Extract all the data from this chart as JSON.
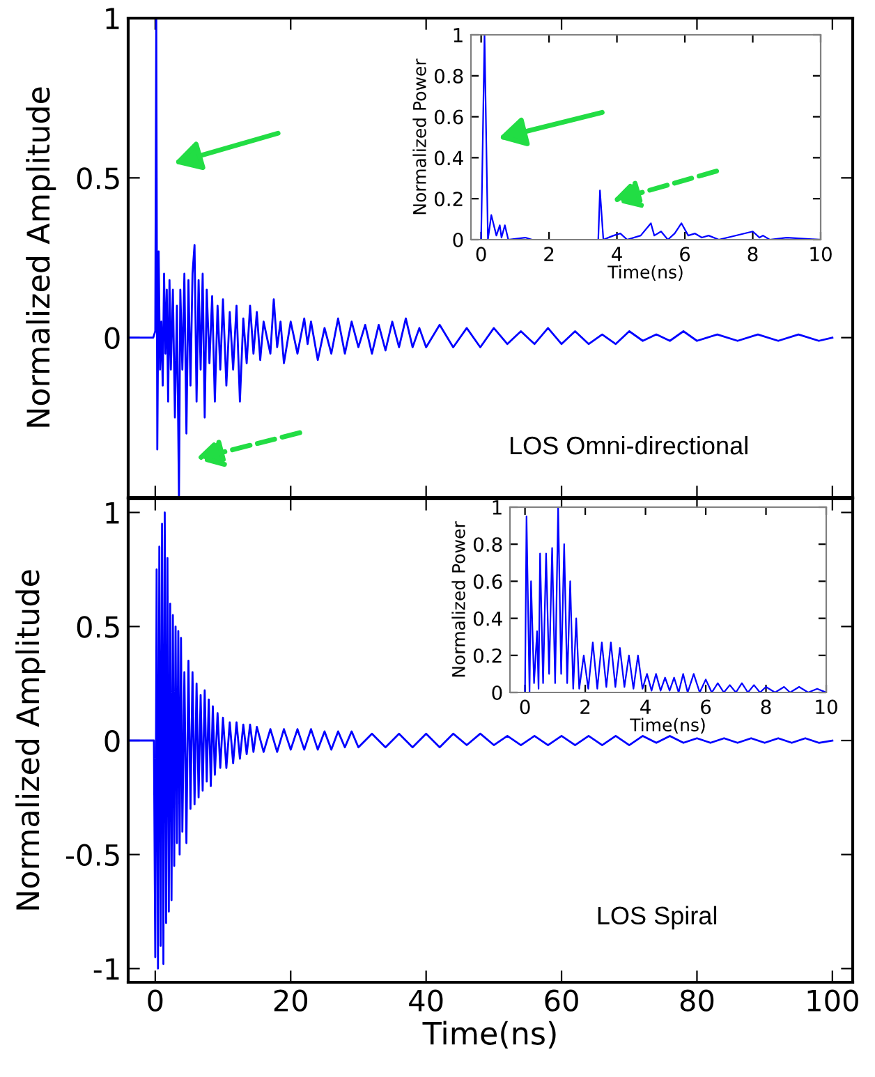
{
  "chart_data": [
    {
      "type": "line",
      "ylabel": "Normalized Amplitude",
      "xlim": [
        -4,
        103
      ],
      "xticks": [
        0,
        20,
        40,
        60,
        80,
        100
      ],
      "ylim": [
        -0.5,
        1
      ],
      "yticks": [
        0,
        0.5,
        1
      ],
      "tick_labels": "y",
      "grid": false,
      "legend": false,
      "annotations": [
        "LOS Omni-directional"
      ],
      "series": [
        {
          "color": "#0000ff",
          "x": [
            -4,
            -0.3,
            0,
            0.15,
            0.3,
            0.5,
            0.7,
            0.9,
            1.1,
            1.3,
            1.5,
            1.7,
            1.9,
            2.1,
            2.3,
            2.6,
            2.9,
            3.2,
            3.5,
            3.7,
            4.0,
            4.3,
            4.6,
            4.9,
            5.2,
            5.5,
            5.8,
            6.1,
            6.4,
            6.7,
            7.0,
            7.3,
            7.6,
            8.0,
            8.4,
            8.8,
            9.2,
            9.6,
            10,
            10.5,
            11,
            11.5,
            12,
            12.5,
            13,
            13.5,
            14,
            14.5,
            15,
            15.5,
            16,
            17,
            17.5,
            18,
            18.5,
            19,
            20,
            21,
            22,
            22.5,
            23,
            24,
            25,
            26,
            27,
            28,
            29,
            30,
            31,
            32,
            33,
            34,
            35,
            36,
            37,
            38,
            39,
            40,
            42,
            44,
            46,
            48,
            50,
            52,
            54,
            56,
            58,
            60,
            62,
            64,
            66,
            68,
            70,
            72,
            74,
            76,
            78,
            80,
            83,
            86,
            89,
            92,
            95,
            98,
            100
          ],
          "values": [
            0,
            0,
            0.02,
            1,
            -0.35,
            0.27,
            -0.1,
            0.05,
            -0.15,
            0.2,
            -0.05,
            0.15,
            -0.2,
            0.18,
            -0.1,
            0.15,
            -0.25,
            0.1,
            -0.5,
            0.15,
            -0.1,
            0.2,
            -0.3,
            0.18,
            -0.15,
            0.2,
            0.29,
            -0.2,
            0.18,
            -0.1,
            0.2,
            -0.25,
            0.15,
            -0.08,
            0.13,
            -0.2,
            0.1,
            -0.1,
            0.12,
            -0.15,
            0.08,
            -0.1,
            0.1,
            -0.2,
            0.06,
            -0.08,
            0.1,
            -0.05,
            0.08,
            -0.07,
            0.05,
            -0.05,
            0.12,
            -0.03,
            0.05,
            -0.08,
            0.05,
            -0.05,
            0.06,
            -0.02,
            0.05,
            -0.07,
            0.03,
            -0.05,
            0.06,
            -0.05,
            0.05,
            -0.03,
            0.04,
            -0.05,
            0.04,
            -0.04,
            0.05,
            -0.03,
            0.06,
            -0.03,
            0.03,
            -0.03,
            0.04,
            -0.03,
            0.03,
            -0.03,
            0.03,
            -0.02,
            0.02,
            -0.02,
            0.03,
            -0.02,
            0.02,
            -0.02,
            0.01,
            -0.02,
            0.02,
            -0.01,
            0.01,
            -0.01,
            0.02,
            -0.01,
            0.01,
            -0.01,
            0.01,
            -0.01,
            0.01,
            -0.01,
            0
          ]
        }
      ]
    },
    {
      "type": "line",
      "xlabel": "Time(ns)",
      "ylabel": "Normalized Power",
      "xlim": [
        -0.3,
        10
      ],
      "xticks": [
        0,
        2,
        4,
        6,
        8,
        10
      ],
      "ylim": [
        0,
        1
      ],
      "yticks": [
        0,
        0.2,
        0.4,
        0.6,
        0.8,
        1
      ],
      "grid": false,
      "legend": false,
      "series": [
        {
          "color": "#0000ff",
          "x": [
            -0.3,
            0,
            0.1,
            0.2,
            0.3,
            0.45,
            0.55,
            0.6,
            0.7,
            0.8,
            1.3,
            1.5,
            3.45,
            3.5,
            3.6,
            3.9,
            4.1,
            4.3,
            4.7,
            5.0,
            5.1,
            5.3,
            5.5,
            5.7,
            5.9,
            6.1,
            6.3,
            6.5,
            6.7,
            7.0,
            8.0,
            8.2,
            8.3,
            8.5,
            9,
            10
          ],
          "values": [
            0,
            0,
            1,
            0,
            0.12,
            0.02,
            0.07,
            0.01,
            0.07,
            0,
            0.01,
            0,
            0,
            0.24,
            0,
            0.02,
            0.03,
            0,
            0.02,
            0.08,
            0.02,
            0.04,
            0,
            0.03,
            0.08,
            0.02,
            0.03,
            0.01,
            0.02,
            0,
            0.04,
            0.01,
            0.02,
            0,
            0.01,
            0
          ]
        }
      ]
    },
    {
      "type": "line",
      "xlabel": "Time(ns)",
      "ylabel": "Normalized Amplitude",
      "xlim": [
        -4,
        103
      ],
      "xticks": [
        0,
        20,
        40,
        60,
        80,
        100
      ],
      "ylim": [
        -1.06,
        1.06
      ],
      "yticks": [
        -1,
        -0.5,
        0,
        0.5,
        1
      ],
      "grid": false,
      "legend": false,
      "annotations": [
        "LOS Spiral"
      ],
      "series": [
        {
          "color": "#0000ff",
          "x": [
            -4,
            -0.2,
            0,
            0.2,
            0.4,
            0.6,
            0.8,
            1.0,
            1.2,
            1.4,
            1.6,
            1.8,
            2.0,
            2.2,
            2.4,
            2.6,
            2.8,
            3.0,
            3.2,
            3.4,
            3.6,
            3.8,
            4.0,
            4.3,
            4.6,
            4.9,
            5.2,
            5.5,
            5.8,
            6.1,
            6.4,
            6.7,
            7.0,
            7.3,
            7.6,
            7.9,
            8.2,
            8.5,
            8.8,
            9.2,
            9.6,
            10,
            10.5,
            11,
            11.5,
            12,
            12.5,
            13,
            13.5,
            14,
            14.5,
            15,
            16,
            17,
            18,
            19,
            20,
            21,
            22,
            23,
            24,
            25,
            26,
            27,
            28,
            29,
            30,
            32,
            34,
            36,
            38,
            40,
            42,
            44,
            46,
            48,
            50,
            52,
            54,
            56,
            58,
            60,
            62,
            64,
            66,
            68,
            70,
            72,
            74,
            76,
            78,
            80,
            82,
            84,
            86,
            88,
            90,
            92,
            94,
            96,
            98,
            100
          ],
          "values": [
            0,
            0,
            -0.95,
            0.75,
            -1,
            0.85,
            -0.9,
            0.95,
            -0.98,
            1,
            -0.8,
            0.8,
            -0.75,
            0.6,
            -0.7,
            0.55,
            -0.55,
            0.5,
            -0.45,
            0.48,
            -0.5,
            0.45,
            -0.4,
            0.3,
            -0.45,
            0.35,
            -0.3,
            0.3,
            -0.28,
            0.25,
            -0.25,
            0.2,
            -0.22,
            0.22,
            -0.18,
            0.18,
            -0.2,
            0.15,
            -0.15,
            0.12,
            -0.12,
            0.1,
            -0.12,
            0.08,
            -0.1,
            0.08,
            -0.08,
            0.07,
            -0.06,
            0.07,
            -0.05,
            0.06,
            -0.05,
            0.05,
            -0.05,
            0.05,
            -0.04,
            0.05,
            -0.04,
            0.05,
            -0.04,
            0.04,
            -0.04,
            0.04,
            -0.03,
            0.04,
            -0.03,
            0.03,
            -0.03,
            0.03,
            -0.03,
            0.03,
            -0.03,
            0.03,
            -0.02,
            0.03,
            -0.02,
            0.02,
            -0.02,
            0.02,
            -0.02,
            0.02,
            -0.02,
            0.02,
            -0.02,
            0.02,
            -0.02,
            0.02,
            -0.01,
            0.02,
            -0.01,
            0.01,
            -0.01,
            0.01,
            -0.01,
            0.01,
            -0.01,
            0.01,
            -0.01,
            0.01,
            -0.01,
            0
          ]
        }
      ]
    },
    {
      "type": "line",
      "xlabel": "Time(ns)",
      "ylabel": "Normalized Power",
      "xlim": [
        -0.5,
        10
      ],
      "xticks": [
        0,
        2,
        4,
        6,
        8,
        10
      ],
      "ylim": [
        0,
        1
      ],
      "yticks": [
        0,
        0.2,
        0.4,
        0.6,
        0.8,
        1
      ],
      "grid": false,
      "legend": false,
      "series": [
        {
          "color": "#0000ff",
          "x": [
            -0.5,
            0,
            0.05,
            0.15,
            0.2,
            0.3,
            0.4,
            0.45,
            0.5,
            0.6,
            0.7,
            0.8,
            0.9,
            1.0,
            1.1,
            1.2,
            1.3,
            1.4,
            1.5,
            1.6,
            1.7,
            1.8,
            1.95,
            2.1,
            2.25,
            2.4,
            2.55,
            2.7,
            2.85,
            3.0,
            3.15,
            3.3,
            3.45,
            3.6,
            3.75,
            3.9,
            4.05,
            4.2,
            4.35,
            4.5,
            4.65,
            4.8,
            4.95,
            5.1,
            5.25,
            5.4,
            5.6,
            5.8,
            6.0,
            6.2,
            6.4,
            6.6,
            6.8,
            7.0,
            7.2,
            7.4,
            7.6,
            7.8,
            8.0,
            8.3,
            8.6,
            8.8,
            9.1,
            9.4,
            9.7,
            10
          ],
          "values": [
            0,
            0,
            0.95,
            0,
            0.6,
            0.05,
            0.33,
            0.02,
            0.75,
            0.05,
            0.75,
            0.1,
            0.78,
            0.05,
            1.0,
            0.1,
            0.8,
            0.05,
            0.6,
            0.02,
            0.4,
            0.02,
            0.2,
            0.02,
            0.27,
            0.02,
            0.27,
            0.03,
            0.27,
            0.03,
            0.24,
            0.03,
            0.2,
            0.02,
            0.2,
            0.02,
            0.1,
            0.01,
            0.1,
            0.01,
            0.08,
            0.01,
            0.08,
            0,
            0.1,
            0,
            0.1,
            0,
            0.07,
            0,
            0.05,
            0,
            0.04,
            0,
            0.05,
            0,
            0.04,
            0,
            0.03,
            0,
            0.03,
            0,
            0.03,
            0,
            0.02,
            0
          ]
        }
      ]
    }
  ]
}
